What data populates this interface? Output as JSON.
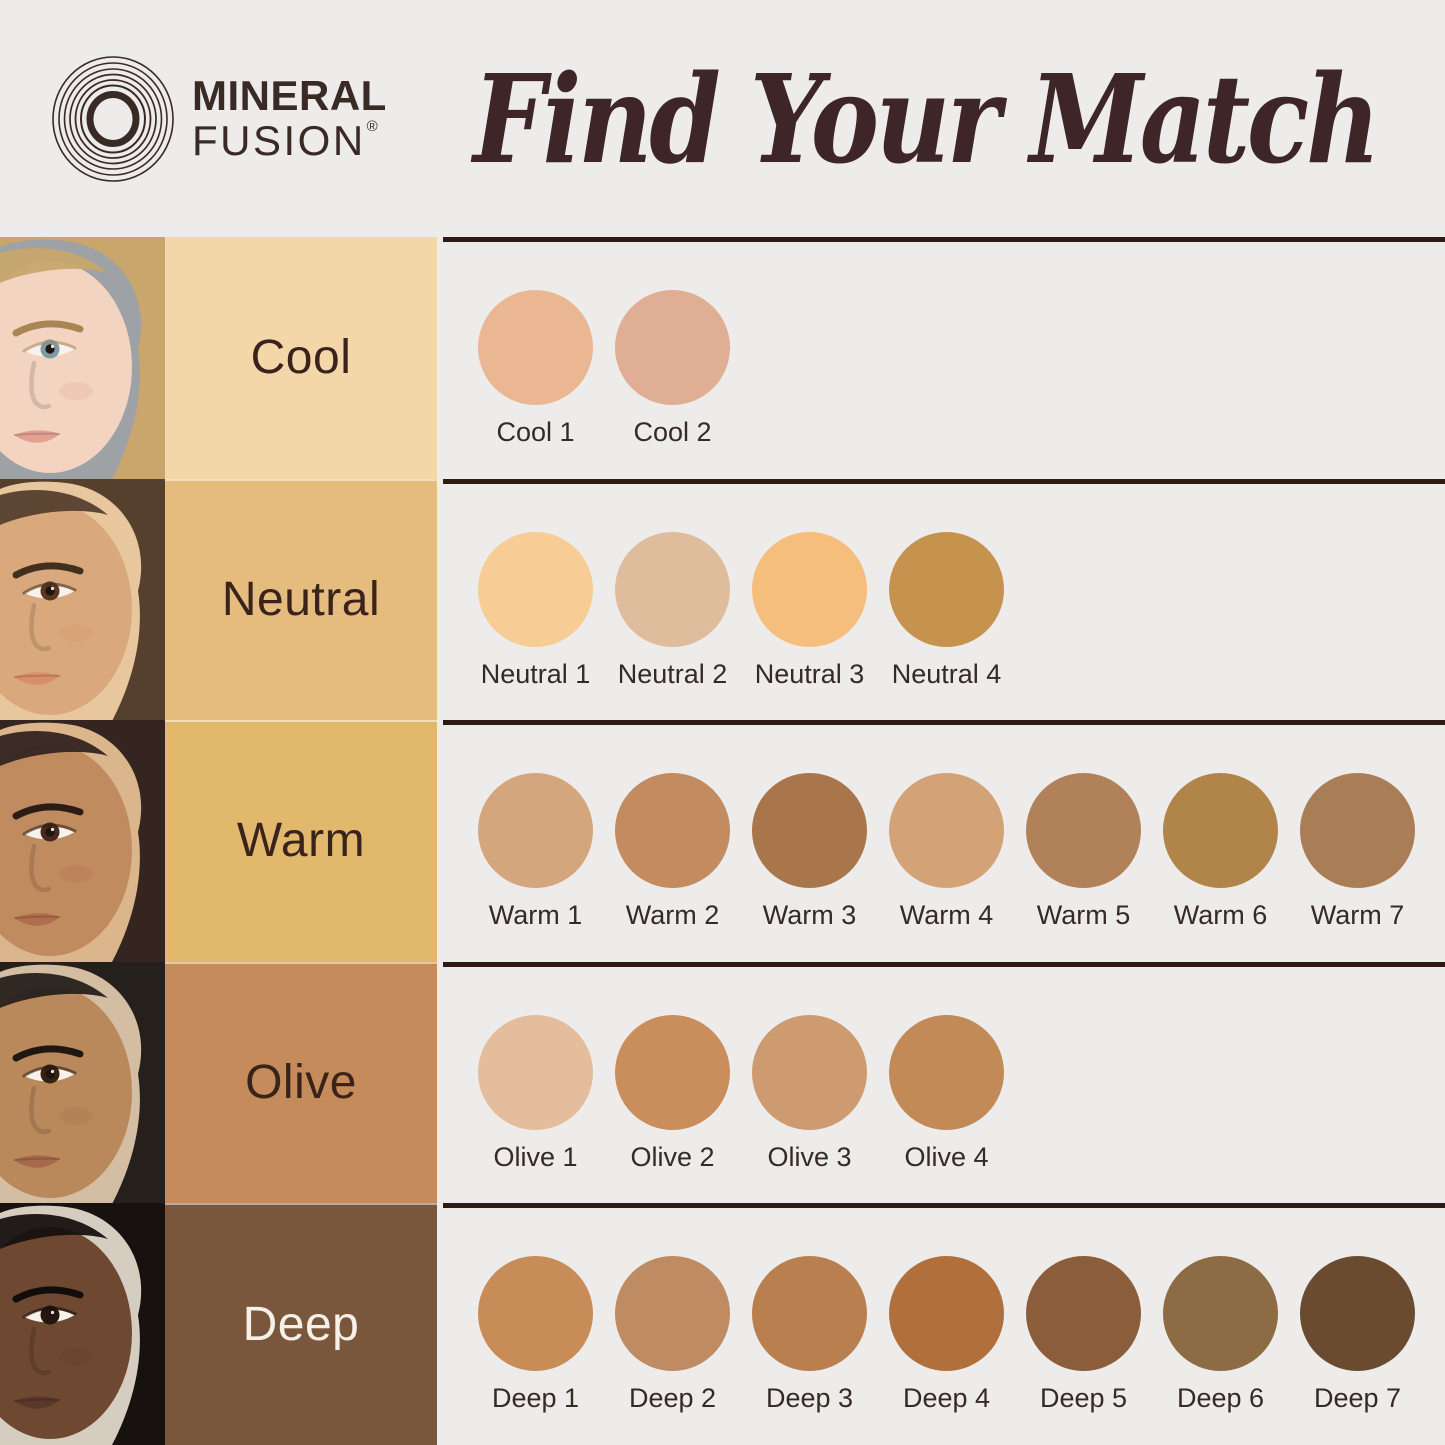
{
  "header": {
    "logo": {
      "line1": "MINERAL",
      "line2": "FUSION",
      "registered": "®"
    },
    "title": "Find Your Match"
  },
  "palette": {
    "background": "#EDECEA",
    "divider": "#2C1C15",
    "title_color": "#3E2528",
    "logo_color": "#3A2A26",
    "label_text": "#3A231C",
    "swatch_label_text": "#362A24"
  },
  "rows": [
    {
      "label": "Cool",
      "label_bg": "#F4D7A9",
      "label_color": "#3A231C",
      "face": {
        "bg": "#9EA2A7",
        "hair": "#C8A66C",
        "skin": "#F2D4C0",
        "brow": "#A98653",
        "eye": "#7D98A6",
        "lip": "#E2A191"
      },
      "swatches": [
        {
          "name": "Cool 1",
          "color": "#EBB793"
        },
        {
          "name": "Cool 2",
          "color": "#DFAE94"
        }
      ]
    },
    {
      "label": "Neutral",
      "label_bg": "#E6BB7E",
      "label_color": "#3A231C",
      "face": {
        "bg": "#E9C79E",
        "hair": "#55402E",
        "skin": "#D9A97D",
        "brow": "#42301F",
        "eye": "#58381F",
        "lip": "#D98E6B"
      },
      "swatches": [
        {
          "name": "Neutral 1",
          "color": "#F7CC95"
        },
        {
          "name": "Neutral 2",
          "color": "#DFBC9B"
        },
        {
          "name": "Neutral 3",
          "color": "#F6BE7D"
        },
        {
          "name": "Neutral 4",
          "color": "#C6934F"
        }
      ]
    },
    {
      "label": "Warm",
      "label_bg": "#E2B96C",
      "label_color": "#3A231C",
      "face": {
        "bg": "#DBB58B",
        "hair": "#342520",
        "skin": "#C18B60",
        "brow": "#2B1D15",
        "eye": "#46291A",
        "lip": "#B06E4C"
      },
      "swatches": [
        {
          "name": "Warm 1",
          "color": "#D4A67D"
        },
        {
          "name": "Warm 2",
          "color": "#C28B60"
        },
        {
          "name": "Warm 3",
          "color": "#A9764C"
        },
        {
          "name": "Warm 4",
          "color": "#D3A377"
        },
        {
          "name": "Warm 5",
          "color": "#B18159"
        },
        {
          "name": "Warm 6",
          "color": "#B18449"
        },
        {
          "name": "Warm 7",
          "color": "#A97E57"
        }
      ]
    },
    {
      "label": "Olive",
      "label_bg": "#C58B5A",
      "label_color": "#3A231C",
      "face": {
        "bg": "#D3BDA3",
        "hair": "#26201C",
        "skin": "#B9895C",
        "brow": "#1F1812",
        "eye": "#36220F",
        "lip": "#A56A4A"
      },
      "swatches": [
        {
          "name": "Olive 1",
          "color": "#E4BD9D"
        },
        {
          "name": "Olive 2",
          "color": "#C98E5B"
        },
        {
          "name": "Olive 3",
          "color": "#CD9B6F"
        },
        {
          "name": "Olive 4",
          "color": "#C18A57"
        }
      ]
    },
    {
      "label": "Deep",
      "label_bg": "#7A573C",
      "label_color": "#F6F1E8",
      "face": {
        "bg": "#D6CDC1",
        "hair": "#171110",
        "skin": "#6E4830",
        "brow": "#120D0A",
        "eye": "#26160E",
        "lip": "#5A382A"
      },
      "swatches": [
        {
          "name": "Deep 1",
          "color": "#C88C58"
        },
        {
          "name": "Deep 2",
          "color": "#BE8B63"
        },
        {
          "name": "Deep 3",
          "color": "#BA7F4F"
        },
        {
          "name": "Deep 4",
          "color": "#B06F3B"
        },
        {
          "name": "Deep 5",
          "color": "#8C5D3B"
        },
        {
          "name": "Deep 6",
          "color": "#8D6C45"
        },
        {
          "name": "Deep 7",
          "color": "#6B4B30"
        }
      ]
    }
  ]
}
